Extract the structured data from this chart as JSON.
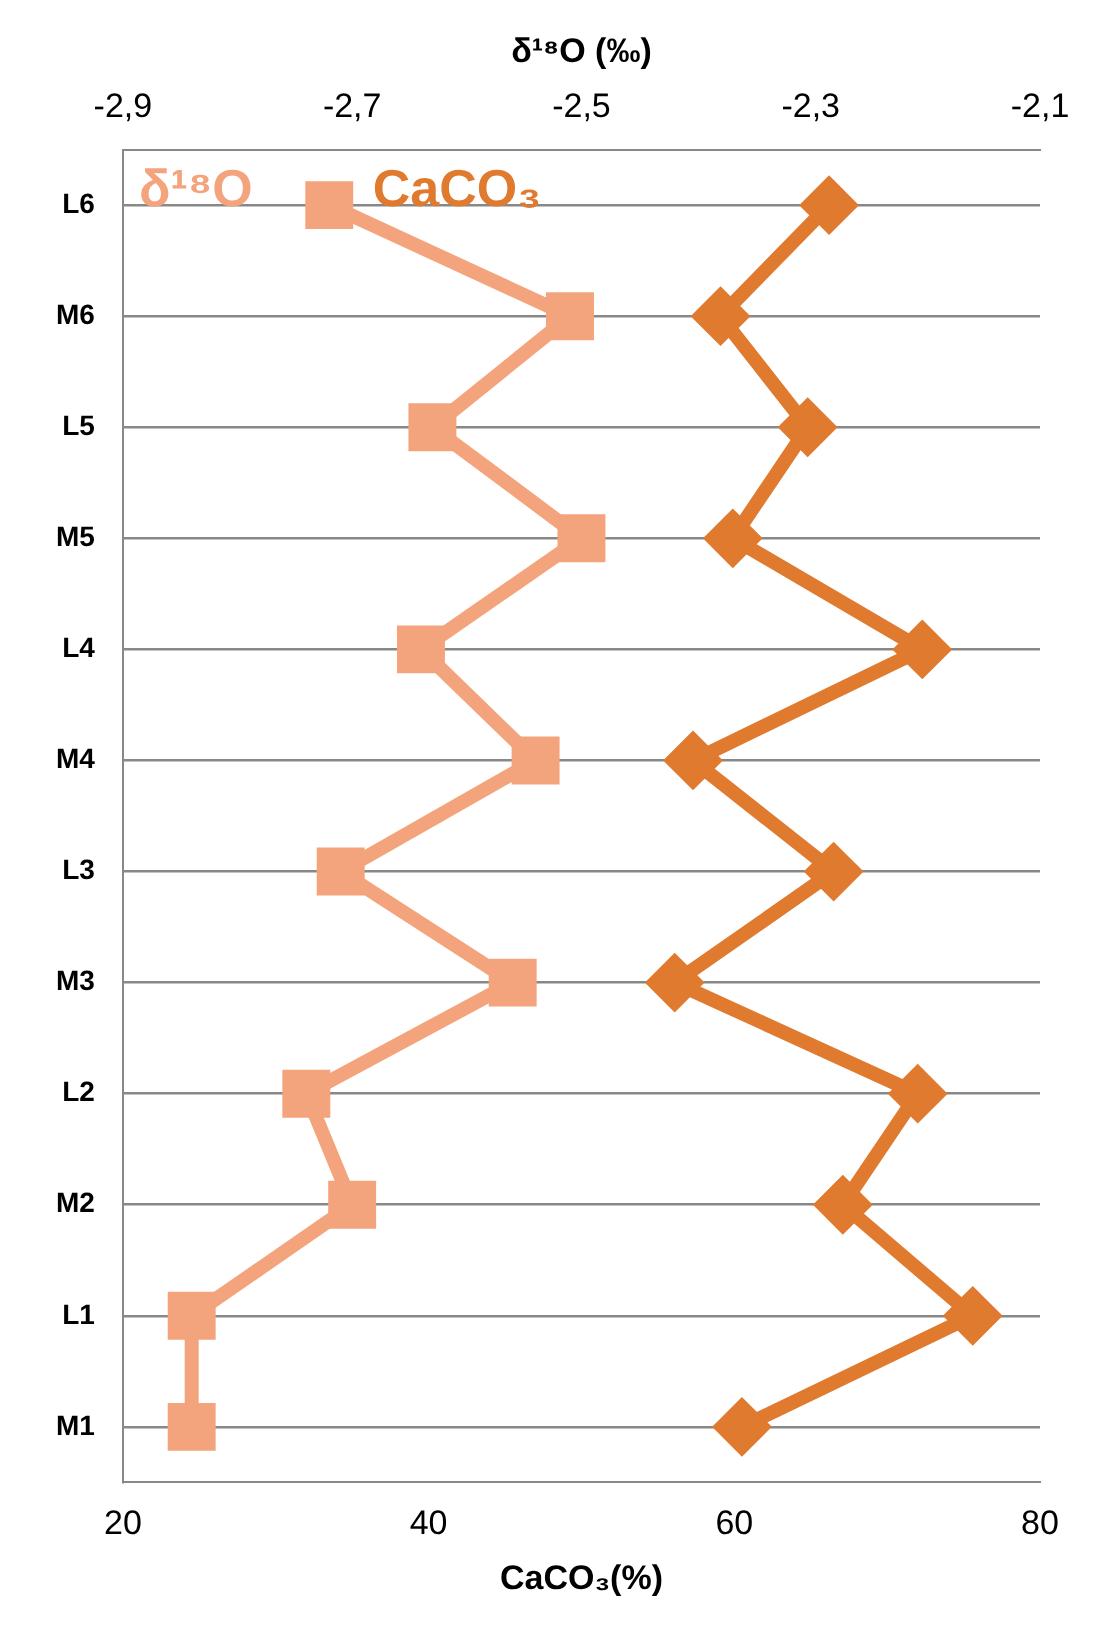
{
  "chart_data": {
    "type": "line",
    "xlabel": "CaCO₃(%)",
    "x2label": "δ¹⁸O (‰)",
    "categories": [
      "L6",
      "M6",
      "L5",
      "M5",
      "L4",
      "M4",
      "L3",
      "M3",
      "L2",
      "M2",
      "L1",
      "M1"
    ],
    "series": [
      {
        "name": "δ¹⁸O",
        "color": "#f4a47c",
        "axis": "x2",
        "marker": "square",
        "values": [
          -2.72,
          -2.51,
          -2.63,
          -2.5,
          -2.64,
          -2.54,
          -2.71,
          -2.56,
          -2.74,
          -2.7,
          -2.84,
          -2.84
        ]
      },
      {
        "name": "CaCO₃",
        "color": "#e07a2e",
        "marker": "diamond",
        "values": [
          66.2,
          59.1,
          64.8,
          59.9,
          72.3,
          57.3,
          66.5,
          56.1,
          72.0,
          67.1,
          75.6,
          60.5
        ]
      }
    ],
    "xlim": [
      20,
      80
    ],
    "xticks": [
      20,
      40,
      60,
      80
    ],
    "x2lim": [
      -2.9,
      -2.1
    ],
    "x2ticks": [
      {
        "value": -2.9,
        "label": "-2,9"
      },
      {
        "value": -2.7,
        "label": "-2,7"
      },
      {
        "value": -2.5,
        "label": "-2,5"
      },
      {
        "value": -2.3,
        "label": "-2,3"
      },
      {
        "value": -2.1,
        "label": "-2,1"
      }
    ],
    "grid": "y",
    "legend": "top left",
    "orientation": "horizontal"
  }
}
